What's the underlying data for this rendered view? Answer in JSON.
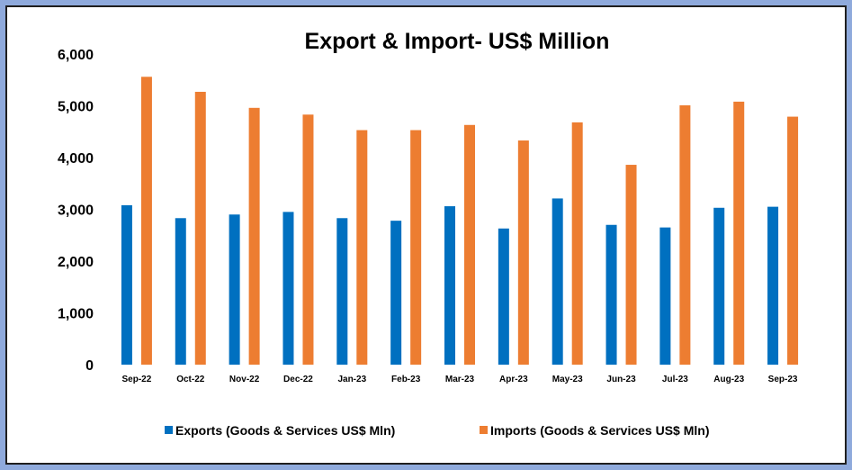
{
  "chart_data": {
    "type": "bar",
    "title": "Export & Import- US$ Million",
    "xlabel": "",
    "ylabel": "",
    "ylim": [
      0,
      6000
    ],
    "yticks": [
      "0",
      "1,000",
      "2,000",
      "3,000",
      "4,000",
      "5,000",
      "6,000"
    ],
    "ytick_values": [
      0,
      1000,
      2000,
      3000,
      4000,
      5000,
      6000
    ],
    "grid": false,
    "legend_position": "bottom",
    "categories": [
      "Sep-22",
      "Oct-22",
      "Nov-22",
      "Dec-22",
      "Jan-23",
      "Feb-23",
      "Mar-23",
      "Apr-23",
      "May-23",
      "Jun-23",
      "Jul-23",
      "Aug-23",
      "Sep-23"
    ],
    "series": [
      {
        "name": "Exports (Goods & Services US$ Mln)",
        "color": "#0070c0",
        "values": [
          3080,
          2830,
          2900,
          2950,
          2830,
          2780,
          3060,
          2630,
          3210,
          2700,
          2650,
          3030,
          3050
        ]
      },
      {
        "name": "Imports (Goods & Services US$ Mln)",
        "color": "#ed7d31",
        "values": [
          5560,
          5270,
          4960,
          4830,
          4530,
          4530,
          4630,
          4330,
          4680,
          3860,
          5010,
          5080,
          4790
        ]
      }
    ]
  }
}
